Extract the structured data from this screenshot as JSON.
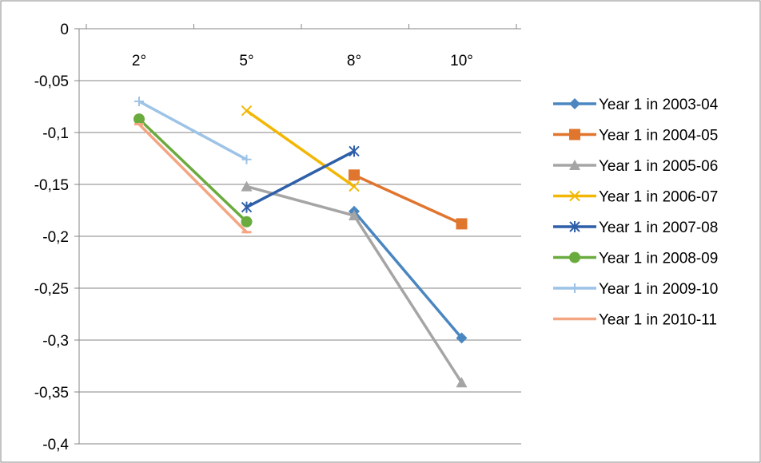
{
  "chart_data": {
    "type": "line",
    "title": "",
    "xlabel": "",
    "ylabel": "",
    "categories": [
      "2°",
      "5°",
      "8°",
      "10°"
    ],
    "ylim": [
      -0.4,
      0
    ],
    "yticks": [
      "0",
      "-0,05",
      "-0,1",
      "-0,15",
      "-0,2",
      "-0,25",
      "-0,3",
      "-0,35",
      "-0,4"
    ],
    "ytick_values": [
      0,
      -0.05,
      -0.1,
      -0.15,
      -0.2,
      -0.25,
      -0.3,
      -0.35,
      -0.4
    ],
    "grid": true,
    "legend_position": "right",
    "series": [
      {
        "name": "Year 1 in 2003-04",
        "color": "#4a86c0",
        "marker": "diamond",
        "values": [
          null,
          null,
          -0.176,
          -0.298
        ]
      },
      {
        "name": "Year 1 in 2004-05",
        "color": "#e0752e",
        "marker": "square",
        "values": [
          null,
          null,
          -0.141,
          -0.188
        ]
      },
      {
        "name": "Year 1 in 2005-06",
        "color": "#a5a5a5",
        "marker": "triangle",
        "values": [
          null,
          -0.152,
          -0.18,
          -0.341
        ]
      },
      {
        "name": "Year 1 in 2006-07",
        "color": "#f2b705",
        "marker": "x",
        "values": [
          null,
          -0.079,
          -0.152,
          null
        ]
      },
      {
        "name": "Year 1 in 2007-08",
        "color": "#2e5fa8",
        "marker": "star",
        "values": [
          null,
          -0.172,
          -0.118,
          null
        ]
      },
      {
        "name": "Year 1 in 2008-09",
        "color": "#6aab3e",
        "marker": "circle",
        "values": [
          -0.087,
          -0.186,
          null,
          null
        ]
      },
      {
        "name": "Year 1 in 2009-10",
        "color": "#9dc3e6",
        "marker": "plus",
        "values": [
          -0.07,
          -0.126,
          null,
          null
        ]
      },
      {
        "name": "Year 1 in 2010-11",
        "color": "#f4a582",
        "marker": "dash",
        "values": [
          -0.092,
          -0.196,
          null,
          null
        ]
      }
    ]
  }
}
